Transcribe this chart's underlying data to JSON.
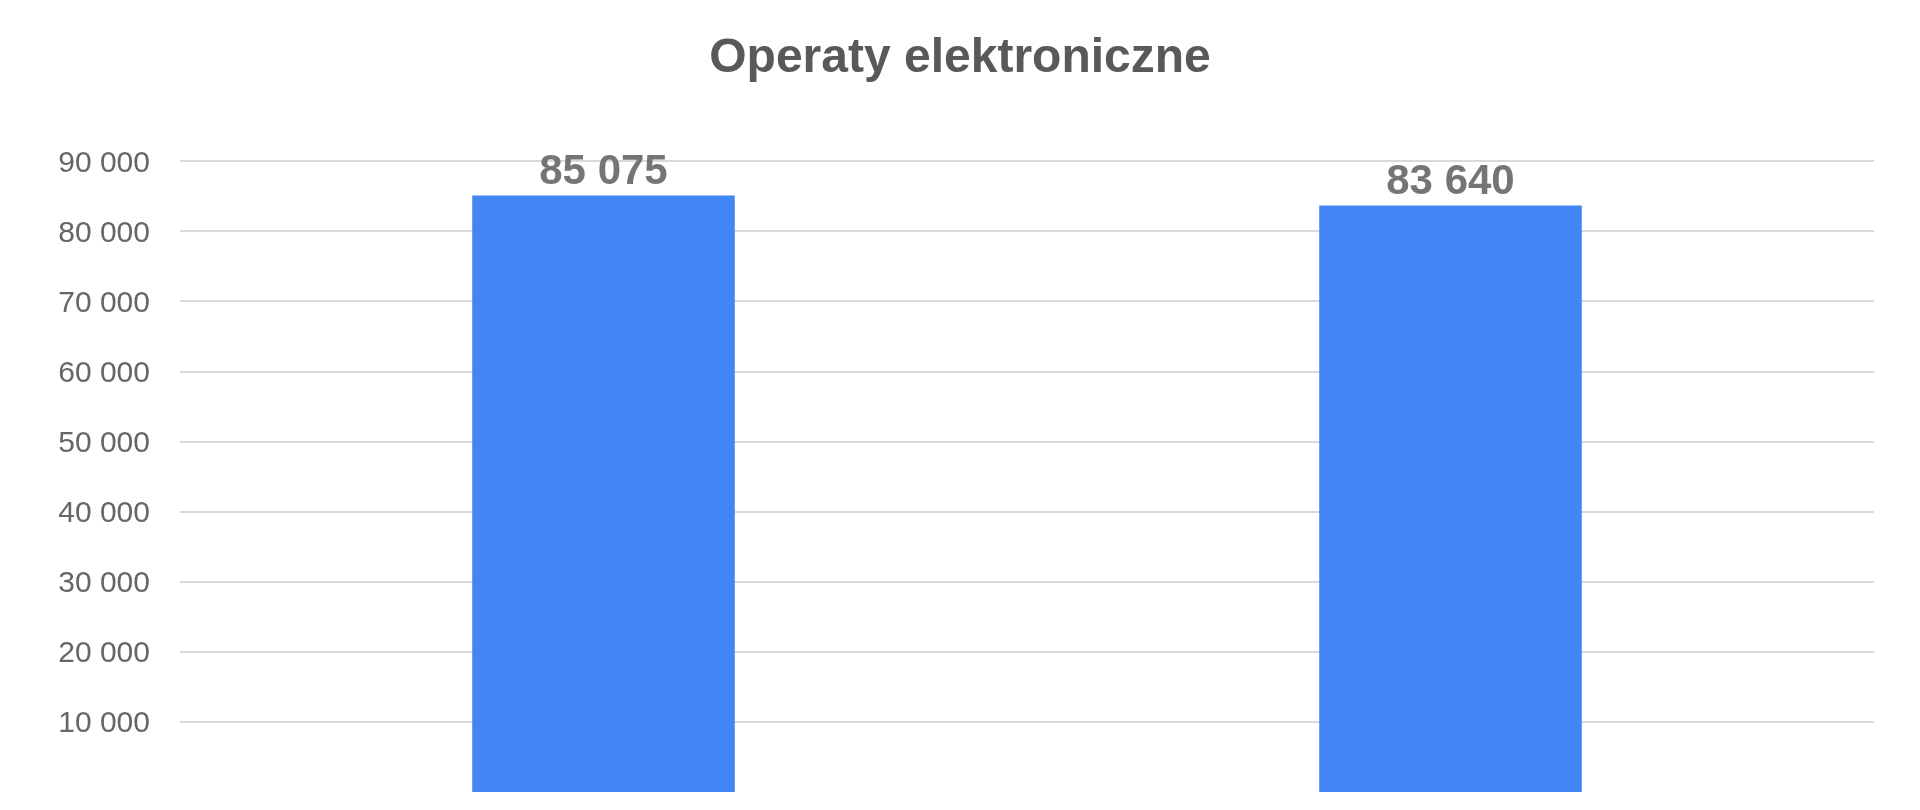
{
  "chart_data": {
    "type": "bar",
    "title": "Operaty elektroniczne",
    "categories": [
      null,
      null
    ],
    "values": [
      85075,
      83640
    ],
    "value_labels": [
      "85 075",
      "83 640"
    ],
    "color": "#4285f4",
    "ylim": [
      0,
      90000
    ],
    "yticks": [
      {
        "value": 10000,
        "label": "10 000"
      },
      {
        "value": 20000,
        "label": "20 000"
      },
      {
        "value": 30000,
        "label": "30 000"
      },
      {
        "value": 40000,
        "label": "40 000"
      },
      {
        "value": 50000,
        "label": "50 000"
      },
      {
        "value": 60000,
        "label": "60 000"
      },
      {
        "value": 70000,
        "label": "70 000"
      },
      {
        "value": 80000,
        "label": "80 000"
      },
      {
        "value": 90000,
        "label": "90 000"
      }
    ],
    "grid": "y"
  }
}
